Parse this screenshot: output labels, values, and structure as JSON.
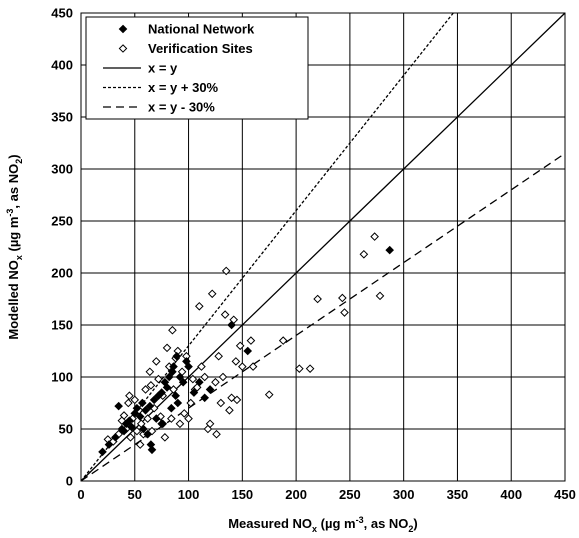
{
  "chart_data": {
    "type": "scatter",
    "xlabel": {
      "main": "Measured NO",
      "sub": "x",
      "rest": " (µg m",
      "sup": "-3",
      "rest2": ", as NO",
      "sub2": "2",
      "end": ")"
    },
    "ylabel": {
      "main": "Modelled NO",
      "sub": "x",
      "rest": " (µg m",
      "sup": "-3",
      "rest2": ", as NO",
      "sub2": "2",
      "end": ")"
    },
    "xlim": [
      0,
      450
    ],
    "ylim": [
      0,
      450
    ],
    "x_ticks": [
      "0",
      "50",
      "100",
      "150",
      "200",
      "250",
      "300",
      "350",
      "400",
      "450"
    ],
    "y_ticks": [
      "0",
      "50",
      "100",
      "150",
      "200",
      "250",
      "300",
      "350",
      "400",
      "450"
    ],
    "grid": true,
    "legend_position": "top-left",
    "lines": [
      {
        "name": "x = y",
        "slope": 1.0,
        "style": "solid"
      },
      {
        "name": "x = y + 30%",
        "slope": 1.3,
        "style": "dotted"
      },
      {
        "name": "x = y - 30%",
        "slope": 0.7,
        "style": "dashed"
      }
    ],
    "series": [
      {
        "name": "National Network",
        "marker": "filled-diamond",
        "points": [
          [
            20,
            28
          ],
          [
            26,
            35
          ],
          [
            32,
            42
          ],
          [
            35,
            72
          ],
          [
            38,
            50
          ],
          [
            40,
            48
          ],
          [
            42,
            55
          ],
          [
            45,
            58
          ],
          [
            47,
            52
          ],
          [
            50,
            65
          ],
          [
            52,
            70
          ],
          [
            55,
            62
          ],
          [
            57,
            75
          ],
          [
            58,
            50
          ],
          [
            60,
            68
          ],
          [
            62,
            45
          ],
          [
            64,
            72
          ],
          [
            65,
            35
          ],
          [
            66,
            30
          ],
          [
            68,
            78
          ],
          [
            70,
            60
          ],
          [
            72,
            82
          ],
          [
            75,
            85
          ],
          [
            76,
            55
          ],
          [
            78,
            95
          ],
          [
            80,
            90
          ],
          [
            82,
            100
          ],
          [
            84,
            70
          ],
          [
            85,
            105
          ],
          [
            86,
            110
          ],
          [
            88,
            82
          ],
          [
            89,
            120
          ],
          [
            90,
            75
          ],
          [
            92,
            100
          ],
          [
            95,
            95
          ],
          [
            98,
            115
          ],
          [
            100,
            110
          ],
          [
            105,
            85
          ],
          [
            110,
            95
          ],
          [
            115,
            80
          ],
          [
            120,
            88
          ],
          [
            140,
            150
          ],
          [
            155,
            125
          ],
          [
            287,
            222
          ]
        ]
      },
      {
        "name": "Verification Sites",
        "marker": "open-diamond",
        "points": [
          [
            25,
            40
          ],
          [
            30,
            38
          ],
          [
            35,
            45
          ],
          [
            38,
            58
          ],
          [
            40,
            63
          ],
          [
            42,
            50
          ],
          [
            44,
            75
          ],
          [
            45,
            82
          ],
          [
            46,
            42
          ],
          [
            48,
            60
          ],
          [
            50,
            78
          ],
          [
            52,
            48
          ],
          [
            54,
            68
          ],
          [
            55,
            35
          ],
          [
            56,
            55
          ],
          [
            58,
            45
          ],
          [
            60,
            88
          ],
          [
            62,
            60
          ],
          [
            64,
            105
          ],
          [
            65,
            92
          ],
          [
            66,
            48
          ],
          [
            68,
            70
          ],
          [
            70,
            115
          ],
          [
            72,
            98
          ],
          [
            74,
            62
          ],
          [
            75,
            55
          ],
          [
            76,
            82
          ],
          [
            78,
            42
          ],
          [
            80,
            128
          ],
          [
            82,
            110
          ],
          [
            84,
            60
          ],
          [
            85,
            145
          ],
          [
            86,
            88
          ],
          [
            88,
            118
          ],
          [
            90,
            125
          ],
          [
            92,
            55
          ],
          [
            94,
            105
          ],
          [
            96,
            65
          ],
          [
            98,
            120
          ],
          [
            100,
            60
          ],
          [
            102,
            75
          ],
          [
            104,
            98
          ],
          [
            106,
            88
          ],
          [
            108,
            90
          ],
          [
            110,
            168
          ],
          [
            112,
            110
          ],
          [
            115,
            100
          ],
          [
            118,
            50
          ],
          [
            120,
            55
          ],
          [
            122,
            180
          ],
          [
            125,
            95
          ],
          [
            126,
            45
          ],
          [
            128,
            120
          ],
          [
            130,
            75
          ],
          [
            132,
            100
          ],
          [
            134,
            160
          ],
          [
            135,
            202
          ],
          [
            138,
            68
          ],
          [
            140,
            80
          ],
          [
            142,
            155
          ],
          [
            144,
            115
          ],
          [
            145,
            78
          ],
          [
            148,
            130
          ],
          [
            150,
            110
          ],
          [
            158,
            135
          ],
          [
            160,
            110
          ],
          [
            175,
            83
          ],
          [
            188,
            135
          ],
          [
            203,
            108
          ],
          [
            213,
            108
          ],
          [
            220,
            175
          ],
          [
            243,
            176
          ],
          [
            245,
            162
          ],
          [
            263,
            218
          ],
          [
            273,
            235
          ],
          [
            278,
            178
          ]
        ]
      }
    ]
  }
}
